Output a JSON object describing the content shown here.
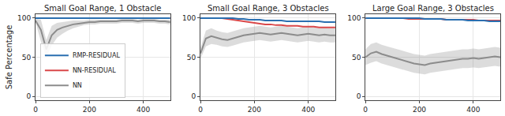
{
  "chart_data": [
    {
      "type": "line",
      "title": "Small Goal Range, 1 Obstacle",
      "y_label": "Safe Percentage",
      "x": [
        0,
        20,
        40,
        60,
        80,
        100,
        120,
        140,
        160,
        180,
        200,
        220,
        240,
        260,
        280,
        300,
        320,
        340,
        360,
        380,
        400,
        420,
        440,
        460,
        480,
        500
      ],
      "xlim": [
        0,
        500
      ],
      "xticks": [
        0,
        200,
        400
      ],
      "ylim": [
        -5,
        105
      ],
      "yticks": [
        0,
        50,
        100
      ],
      "grid": true,
      "legend": "lower left",
      "series": [
        {
          "name": "NN",
          "color": "#8c8c8c",
          "values": [
            97,
            85,
            60,
            78,
            85,
            88,
            90,
            92,
            93,
            94,
            95,
            95,
            96,
            96,
            96,
            96,
            97,
            97,
            97,
            96,
            97,
            97,
            97,
            96,
            96,
            95
          ],
          "lower": [
            95,
            70,
            50,
            65,
            75,
            80,
            84,
            87,
            89,
            91,
            92,
            92,
            93,
            93,
            93,
            93,
            94,
            94,
            94,
            93,
            94,
            94,
            94,
            93,
            93,
            92
          ],
          "upper": [
            99,
            98,
            72,
            90,
            94,
            95,
            96,
            97,
            97,
            97,
            98,
            98,
            98,
            98,
            98,
            98,
            99,
            99,
            99,
            98,
            99,
            99,
            99,
            98,
            98,
            98
          ]
        },
        {
          "name": "NN-RESIDUAL",
          "color": "#d9484a",
          "values": [
            100,
            100,
            100,
            100,
            100,
            100,
            100,
            100,
            100,
            100,
            100,
            100,
            100,
            100,
            100,
            100,
            100,
            100,
            100,
            100,
            100,
            100,
            100,
            100,
            100,
            100
          ]
        },
        {
          "name": "RMP-RESIDUAL",
          "color": "#2a6fb0",
          "values": [
            100,
            100,
            100,
            100,
            100,
            100,
            100,
            100,
            100,
            100,
            100,
            100,
            100,
            100,
            100,
            100,
            100,
            100,
            100,
            100,
            100,
            100,
            100,
            100,
            100,
            100
          ]
        }
      ]
    },
    {
      "type": "line",
      "title": "Small Goal Range, 3 Obstacles",
      "x": [
        0,
        20,
        40,
        60,
        80,
        100,
        120,
        140,
        160,
        180,
        200,
        220,
        240,
        260,
        280,
        300,
        320,
        340,
        360,
        380,
        400,
        420,
        440,
        460,
        480,
        500
      ],
      "xlim": [
        0,
        500
      ],
      "xticks": [
        0,
        200,
        400
      ],
      "ylim": [
        -5,
        105
      ],
      "yticks": [
        0,
        50,
        100
      ],
      "grid": true,
      "series": [
        {
          "name": "NN",
          "color": "#8c8c8c",
          "values": [
            55,
            74,
            77,
            75,
            73,
            72,
            74,
            76,
            78,
            79,
            80,
            81,
            80,
            79,
            80,
            81,
            80,
            79,
            78,
            79,
            80,
            79,
            78,
            79,
            78,
            78
          ],
          "lower": [
            48,
            64,
            67,
            66,
            64,
            63,
            65,
            67,
            69,
            70,
            71,
            72,
            71,
            70,
            71,
            72,
            71,
            70,
            69,
            70,
            71,
            70,
            69,
            70,
            69,
            69
          ],
          "upper": [
            62,
            84,
            87,
            84,
            82,
            81,
            83,
            85,
            87,
            88,
            89,
            90,
            89,
            88,
            89,
            90,
            89,
            88,
            87,
            88,
            89,
            88,
            87,
            88,
            87,
            87
          ]
        },
        {
          "name": "NN-RESIDUAL",
          "color": "#d9484a",
          "values": [
            100,
            100,
            100,
            100,
            100,
            99,
            98,
            97,
            96,
            95,
            94,
            93,
            92,
            92,
            91,
            91,
            90,
            90,
            90,
            89,
            89,
            89,
            88,
            88,
            88,
            88
          ]
        },
        {
          "name": "RMP-RESIDUAL",
          "color": "#2a6fb0",
          "values": [
            100,
            100,
            100,
            100,
            100,
            100,
            100,
            99,
            99,
            98,
            98,
            98,
            97,
            97,
            97,
            97,
            96,
            96,
            96,
            96,
            96,
            96,
            96,
            95,
            95,
            95
          ]
        }
      ]
    },
    {
      "type": "line",
      "title": "Large Goal Range, 3 Obstacles",
      "x": [
        0,
        20,
        40,
        60,
        80,
        100,
        120,
        140,
        160,
        180,
        200,
        220,
        240,
        260,
        280,
        300,
        320,
        340,
        360,
        380,
        400,
        420,
        440,
        460,
        480,
        500
      ],
      "xlim": [
        0,
        500
      ],
      "xticks": [
        0,
        200,
        400
      ],
      "ylim": [
        -5,
        105
      ],
      "yticks": [
        0,
        50,
        100
      ],
      "grid": true,
      "series": [
        {
          "name": "NN",
          "color": "#8c8c8c",
          "values": [
            50,
            55,
            57,
            54,
            52,
            50,
            48,
            46,
            44,
            42,
            41,
            40,
            42,
            43,
            44,
            45,
            46,
            47,
            48,
            48,
            49,
            48,
            49,
            50,
            51,
            50
          ],
          "lower": [
            40,
            43,
            45,
            42,
            40,
            38,
            36,
            34,
            32,
            30,
            29,
            28,
            30,
            31,
            32,
            33,
            34,
            35,
            36,
            36,
            37,
            36,
            37,
            38,
            39,
            38
          ],
          "upper": [
            60,
            67,
            69,
            66,
            64,
            62,
            60,
            58,
            56,
            54,
            53,
            52,
            54,
            55,
            56,
            57,
            58,
            59,
            60,
            60,
            61,
            60,
            61,
            62,
            63,
            62
          ]
        },
        {
          "name": "NN-RESIDUAL",
          "color": "#d9484a",
          "values": [
            100,
            100,
            100,
            100,
            100,
            100,
            100,
            100,
            99,
            99,
            99,
            99,
            99,
            99,
            99,
            98,
            98,
            98,
            98,
            98,
            98,
            97,
            97,
            97,
            97,
            97
          ]
        },
        {
          "name": "RMP-RESIDUAL",
          "color": "#2a6fb0",
          "values": [
            100,
            100,
            100,
            100,
            100,
            100,
            100,
            100,
            100,
            100,
            100,
            99,
            99,
            99,
            99,
            98,
            98,
            98,
            98,
            97,
            97,
            97,
            97,
            96,
            96,
            96
          ]
        }
      ]
    }
  ]
}
